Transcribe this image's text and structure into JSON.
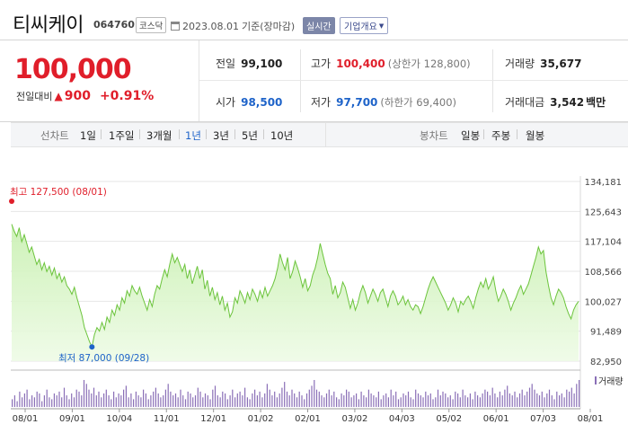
{
  "header": {
    "name": "티씨케이",
    "code": "064760",
    "market": "코스닥",
    "date": "2023.08.01",
    "date_suffix": "기준(장마감)",
    "live_button": "실시간",
    "info_button": "기업개요"
  },
  "summary": {
    "price": "100,000",
    "prev_label": "전일대비",
    "change": "900",
    "change_pct": "+0.91%",
    "prev_close_label": "전일",
    "prev_close": "99,100",
    "high_label": "고가",
    "high": "100,400",
    "upper_limit": "(상한가 128,800)",
    "volume_label": "거래량",
    "volume": "35,677",
    "open_label": "시가",
    "open": "98,500",
    "low_label": "저가",
    "low": "97,700",
    "lower_limit": "(하한가 69,400)",
    "amount_label": "거래대금",
    "amount": "3,542",
    "amount_unit": "백만"
  },
  "tabs": {
    "line_label": "선차트",
    "line_tabs": [
      "1일",
      "1주일",
      "3개월",
      "1년",
      "3년",
      "5년",
      "10년"
    ],
    "selected_index": 3,
    "candle_label": "봉차트",
    "candle_tabs": [
      "일봉",
      "주봉",
      "월봉"
    ]
  },
  "chart": {
    "high_label": "최고 127,500 (08/01)",
    "low_label": "최저 87,000 (09/28)",
    "volume_label": "거래량"
  },
  "colors": {
    "up": "#e01e2a",
    "down": "#1e63c9",
    "line": "#6cc43c",
    "volume_bar": "#8a6fb7"
  },
  "chart_data": {
    "type": "area",
    "yticks": [
      "134,181",
      "125,643",
      "117,104",
      "108,566",
      "100,027",
      "91,489",
      "82,950"
    ],
    "ylim": [
      82950,
      134181
    ],
    "xticks": [
      "08/01",
      "09/01",
      "10/04",
      "11/01",
      "12/01",
      "01/02",
      "02/01",
      "03/02",
      "04/03",
      "05/02",
      "06/01",
      "07/03",
      "08/01"
    ],
    "high": {
      "value": 127500,
      "date": "08/01"
    },
    "low": {
      "value": 87000,
      "date": "09/28"
    },
    "series": [
      {
        "values": [
          122000,
          120000,
          118500,
          121000,
          117000,
          119000,
          116500,
          114000,
          115500,
          113000,
          110500,
          112000,
          109000,
          111000,
          108500,
          110000,
          107500,
          109500,
          106500,
          108000,
          105500,
          107000,
          104500,
          103500,
          102000,
          104000,
          101000,
          98500,
          96000,
          92500,
          90500,
          88500,
          87000,
          90500,
          92500,
          91500,
          94000,
          92000,
          95500,
          94000,
          97500,
          96000,
          99000,
          97500,
          101000,
          99500,
          103000,
          101500,
          104500,
          103000,
          102000,
          104000,
          101500,
          99500,
          97500,
          100500,
          98500,
          102000,
          104500,
          103500,
          106500,
          109000,
          107000,
          110500,
          113500,
          111000,
          112500,
          110500,
          108500,
          110500,
          106500,
          109000,
          105000,
          107500,
          110000,
          106500,
          109000,
          103500,
          106000,
          101500,
          104000,
          100500,
          102500,
          99000,
          101500,
          97500,
          99500,
          95500,
          97000,
          101000,
          99500,
          103000,
          101500,
          99500,
          102500,
          100500,
          103500,
          102000,
          100000,
          103000,
          101000,
          104000,
          101500,
          103000,
          104500,
          106500,
          109500,
          113500,
          111000,
          109000,
          112500,
          106500,
          108500,
          111500,
          109500,
          107000,
          104000,
          106500,
          103000,
          104500,
          107500,
          109500,
          112500,
          116500,
          113500,
          110500,
          108000,
          106500,
          102000,
          104500,
          101000,
          102500,
          105500,
          104000,
          101000,
          98000,
          100500,
          97500,
          99500,
          102500,
          104500,
          102500,
          99500,
          101500,
          103500,
          102000,
          100000,
          102500,
          103500,
          101000,
          98500,
          101500,
          103000,
          101500,
          99000,
          100000,
          101500,
          99000,
          100500,
          98500,
          97500,
          99000,
          98500,
          96500,
          98500,
          101000,
          103500,
          105500,
          107000,
          105500,
          104000,
          102500,
          101000,
          99500,
          97500,
          99000,
          101000,
          99500,
          97000,
          100000,
          99000,
          100500,
          101500,
          100000,
          98000,
          101000,
          103500,
          105500,
          104000,
          106500,
          103500,
          105000,
          107000,
          103000,
          100000,
          101500,
          103500,
          102000,
          100000,
          97500,
          99500,
          101000,
          103000,
          104500,
          102000,
          103500,
          105000,
          107500,
          110000,
          112500,
          115500,
          113500,
          114500,
          108500,
          104500,
          101000,
          99000,
          101500,
          103500,
          102500,
          101000,
          98500,
          96500,
          95000,
          97500,
          99000,
          100000
        ]
      }
    ],
    "volume": [
      4,
      6,
      3,
      8,
      5,
      7,
      9,
      4,
      6,
      5,
      8,
      7,
      3,
      6,
      9,
      5,
      4,
      7,
      6,
      8,
      5,
      10,
      6,
      4,
      7,
      5,
      9,
      8,
      6,
      14,
      12,
      9,
      7,
      10,
      6,
      8,
      5,
      7,
      9,
      6,
      4,
      8,
      5,
      7,
      6,
      9,
      11,
      5,
      7,
      4,
      8,
      6,
      5,
      9,
      7,
      4,
      6,
      8,
      10,
      7,
      5,
      6,
      9,
      12,
      8,
      6,
      7,
      5,
      9,
      6,
      4,
      8,
      7,
      5,
      6,
      10,
      8,
      5,
      7,
      6,
      4,
      9,
      11,
      6,
      5,
      8,
      7,
      4,
      6,
      9,
      5,
      7,
      8,
      6,
      10,
      5,
      4,
      7,
      9,
      6,
      8,
      5,
      7,
      12,
      9,
      6,
      8,
      5,
      7,
      10,
      13,
      8,
      6,
      9,
      7,
      5,
      8,
      6,
      4,
      7,
      9,
      11,
      14,
      9,
      8,
      6,
      5,
      7,
      9,
      6,
      8,
      5,
      4,
      7,
      6,
      9,
      8,
      5,
      6,
      7,
      4,
      8,
      6,
      5,
      9,
      7,
      6,
      5,
      8,
      4,
      6,
      7,
      5,
      9,
      6,
      8,
      4,
      5,
      7,
      6,
      8,
      5,
      4,
      9,
      7,
      6,
      5,
      8,
      6,
      7,
      4,
      5,
      9,
      6,
      8,
      7,
      5,
      6,
      4,
      8,
      7,
      5,
      9,
      6,
      5,
      7,
      4,
      8,
      6,
      5,
      7,
      9,
      8,
      6,
      10,
      7,
      5,
      8,
      6,
      9,
      11,
      7,
      6,
      8,
      5,
      7,
      9,
      6,
      8,
      10,
      12,
      9,
      7,
      6,
      8,
      5,
      7,
      9,
      6,
      4,
      8,
      6,
      7,
      5,
      9,
      8,
      10,
      7,
      12,
      14
    ]
  }
}
